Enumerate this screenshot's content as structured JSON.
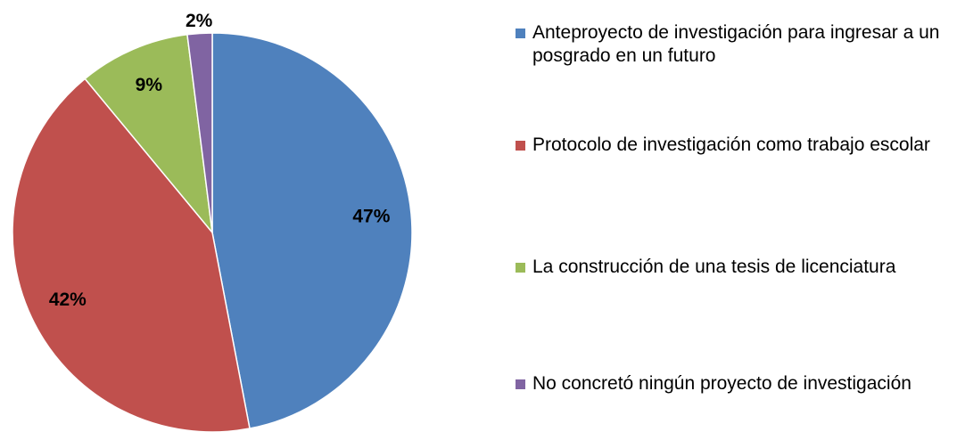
{
  "chart_data": {
    "type": "pie",
    "categories": [
      "Anteproyecto de investigación para ingresar a un posgrado en un futuro",
      "Protocolo de investigación como trabajo escolar",
      "La construcción de una tesis de licenciatura",
      "No concretó ningún proyecto de investigación"
    ],
    "values": [
      47,
      42,
      9,
      2
    ],
    "value_labels": [
      "47%",
      "42%",
      "9%",
      "2%"
    ],
    "colors": [
      "#4f81bd",
      "#c0504d",
      "#9bbb59",
      "#8064a2"
    ],
    "legend": "right"
  }
}
